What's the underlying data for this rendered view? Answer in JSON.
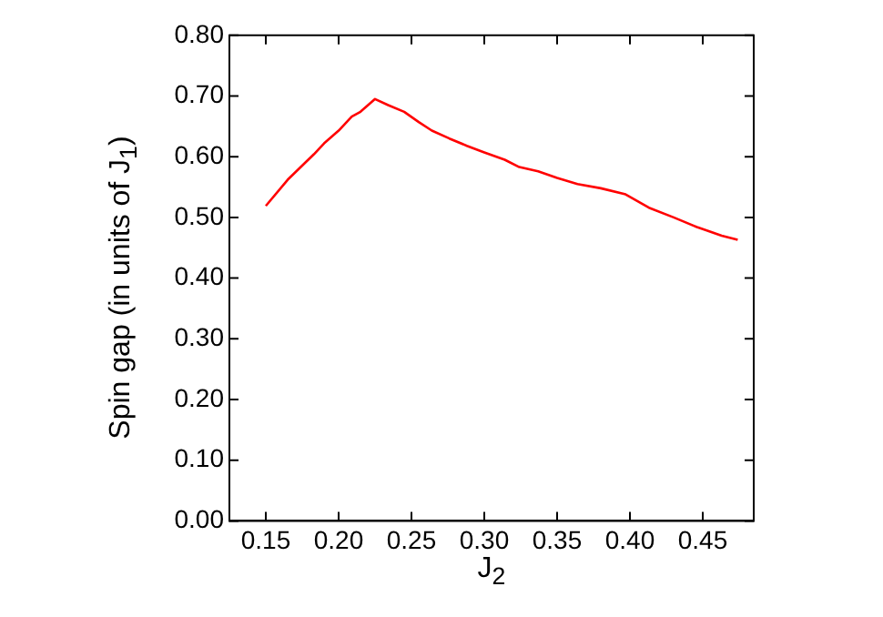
{
  "chart_data": {
    "type": "line",
    "xlabel": "J$_{2}$",
    "ylabel": "Spin gap (in units of J$_{1}$)",
    "grid": false,
    "legend": false,
    "marker": "none",
    "line_style": "solid",
    "xlim": [
      0.125,
      0.485
    ],
    "ylim": [
      0,
      0.8
    ],
    "xticks": [
      {
        "value": 0.15,
        "label": "0.15"
      },
      {
        "value": 0.2,
        "label": "0.20"
      },
      {
        "value": 0.25,
        "label": "0.25"
      },
      {
        "value": 0.3,
        "label": "0.30"
      },
      {
        "value": 0.35,
        "label": "0.35"
      },
      {
        "value": 0.4,
        "label": "0.40"
      },
      {
        "value": 0.45,
        "label": "0.45"
      }
    ],
    "yticks": [
      {
        "value": 0,
        "label": "0.00"
      },
      {
        "value": 0.1,
        "label": "0.10"
      },
      {
        "value": 0.2,
        "label": "0.20"
      },
      {
        "value": 0.3,
        "label": "0.30"
      },
      {
        "value": 0.4,
        "label": "0.40"
      },
      {
        "value": 0.5,
        "label": "0.50"
      },
      {
        "value": 0.6,
        "label": "0.60"
      },
      {
        "value": 0.7,
        "label": "0.70"
      },
      {
        "value": 0.8,
        "label": "0.80"
      }
    ],
    "x": [
      0.15,
      0.165,
      0.183,
      0.19,
      0.2,
      0.209,
      0.215,
      0.225,
      0.234,
      0.245,
      0.255,
      0.264,
      0.276,
      0.288,
      0.3,
      0.314,
      0.324,
      0.337,
      0.35,
      0.364,
      0.38,
      0.397,
      0.413,
      0.43,
      0.446,
      0.463,
      0.474
    ],
    "series": [
      {
        "color": "#ff0000",
        "values": [
          0.519,
          0.562,
          0.604,
          0.622,
          0.643,
          0.666,
          0.674,
          0.695,
          0.685,
          0.674,
          0.657,
          0.643,
          0.63,
          0.618,
          0.607,
          0.595,
          0.583,
          0.576,
          0.565,
          0.555,
          0.548,
          0.538,
          0.516,
          0.5,
          0.484,
          0.47,
          0.463
        ]
      }
    ]
  }
}
